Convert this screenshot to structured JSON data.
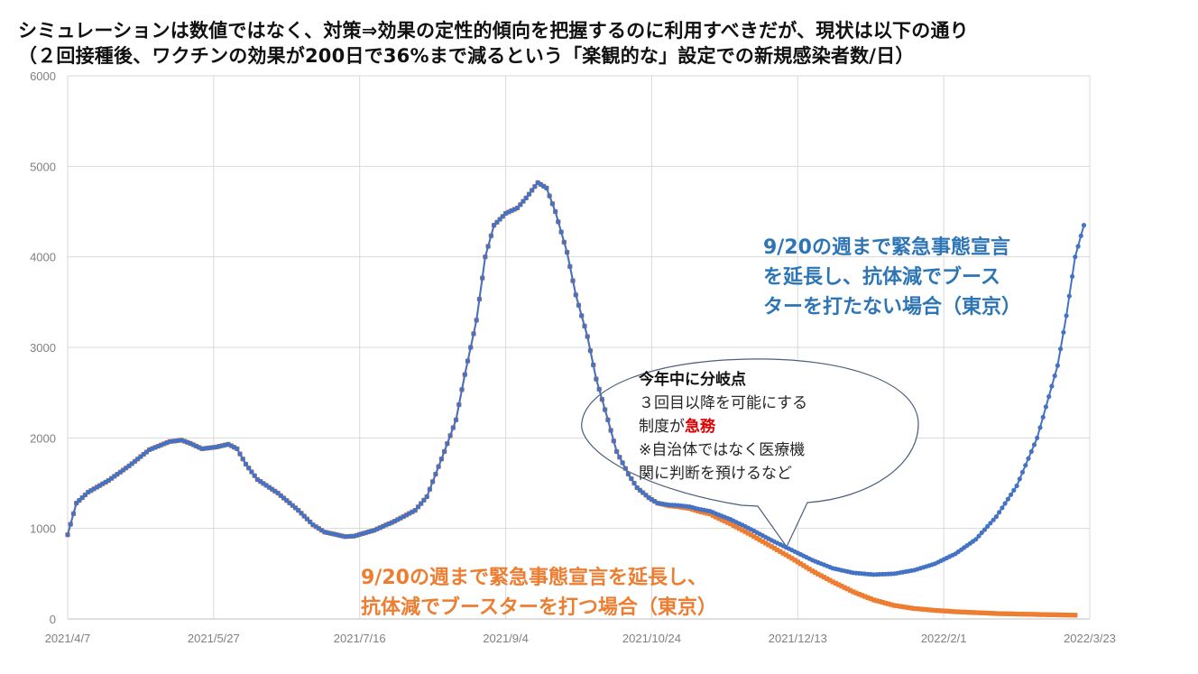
{
  "title_line1": "シミュレーションは数値ではなく、対策⇒効果の定性的傾向を把握するのに利用すべきだが、現状は以下の通り",
  "title_line2": "（２回接種後、ワクチンの効果が200日で36%まで減るという「楽観的な」設定での新規感染者数/日）",
  "colors": {
    "blue": "#4472c4",
    "orange": "#ed7d31",
    "annot_blue": "#2e75b6",
    "grid": "#d9d9d9",
    "tick": "#7f7f7f",
    "urgent": "#e00000"
  },
  "annotations": {
    "blue_line1": "9/20の週まで緊急事態宣言",
    "blue_line2": "を延長し、抗体減でブース",
    "blue_line3": "ターを打たない場合（東京）",
    "orange_line1": "9/20の週まで緊急事態宣言を延長し、",
    "orange_line2": "抗体減でブースターを打つ場合（東京）"
  },
  "callout": {
    "title": "今年中に分岐点",
    "line1": "３回目以降を可能にする",
    "line2_prefix": "制度が",
    "line2_urgent": "急務",
    "line3": "※自治体ではなく医療機",
    "line4": "関に判断を預けるなど"
  },
  "chart_data": {
    "type": "line",
    "title": "",
    "xlabel": "",
    "ylabel": "",
    "ylim": [
      0,
      6000
    ],
    "yticks": [
      0,
      1000,
      2000,
      3000,
      4000,
      5000,
      6000
    ],
    "x_tick_labels": [
      "2021/4/7",
      "2021/5/27",
      "2021/7/16",
      "2021/9/4",
      "2021/10/24",
      "2021/12/13",
      "2022/2/1",
      "2022/3/23"
    ],
    "x_range": [
      "2021/4/7",
      "2022/3/23"
    ],
    "grid": true,
    "series": [
      {
        "name": "",
        "color_key": "orange",
        "marker": "square",
        "points": [
          [
            "2021/4/7",
            930
          ],
          [
            "2021/4/10",
            1280
          ],
          [
            "2021/4/14",
            1400
          ],
          [
            "2021/4/21",
            1530
          ],
          [
            "2021/4/28",
            1690
          ],
          [
            "2021/5/5",
            1870
          ],
          [
            "2021/5/12",
            1960
          ],
          [
            "2021/5/16",
            1975
          ],
          [
            "2021/5/19",
            1940
          ],
          [
            "2021/5/23",
            1880
          ],
          [
            "2021/5/28",
            1900
          ],
          [
            "2021/6/1",
            1930
          ],
          [
            "2021/6/4",
            1880
          ],
          [
            "2021/6/7",
            1710
          ],
          [
            "2021/6/11",
            1540
          ],
          [
            "2021/6/18",
            1390
          ],
          [
            "2021/6/25",
            1200
          ],
          [
            "2021/6/30",
            1040
          ],
          [
            "2021/7/4",
            960
          ],
          [
            "2021/7/11",
            910
          ],
          [
            "2021/7/14",
            915
          ],
          [
            "2021/7/21",
            980
          ],
          [
            "2021/7/28",
            1080
          ],
          [
            "2021/8/4",
            1200
          ],
          [
            "2021/8/8",
            1350
          ],
          [
            "2021/8/11",
            1600
          ],
          [
            "2021/8/14",
            1850
          ],
          [
            "2021/8/18",
            2200
          ],
          [
            "2021/8/21",
            2700
          ],
          [
            "2021/8/25",
            3300
          ],
          [
            "2021/8/28",
            4000
          ],
          [
            "2021/8/31",
            4350
          ],
          [
            "2021/9/4",
            4480
          ],
          [
            "2021/9/8",
            4540
          ],
          [
            "2021/9/11",
            4650
          ],
          [
            "2021/9/15",
            4820
          ],
          [
            "2021/9/18",
            4760
          ],
          [
            "2021/9/21",
            4500
          ],
          [
            "2021/9/25",
            4050
          ],
          [
            "2021/9/28",
            3580
          ],
          [
            "2021/10/2",
            3120
          ],
          [
            "2021/10/5",
            2650
          ],
          [
            "2021/10/9",
            2200
          ],
          [
            "2021/10/12",
            1850
          ],
          [
            "2021/10/16",
            1600
          ],
          [
            "2021/10/19",
            1450
          ],
          [
            "2021/10/23",
            1340
          ],
          [
            "2021/10/26",
            1280
          ],
          [
            "2021/10/30",
            1250
          ],
          [
            "2021/11/2",
            1240
          ],
          [
            "2021/11/6",
            1220
          ],
          [
            "2021/11/9",
            1190
          ],
          [
            "2021/11/13",
            1160
          ],
          [
            "2021/11/16",
            1110
          ],
          [
            "2021/11/20",
            1050
          ],
          [
            "2021/11/27",
            930
          ],
          [
            "2021/12/4",
            800
          ],
          [
            "2021/12/11",
            670
          ],
          [
            "2021/12/18",
            530
          ],
          [
            "2021/12/25",
            410
          ],
          [
            "2022/1/1",
            300
          ],
          [
            "2022/1/8",
            210
          ],
          [
            "2022/1/15",
            150
          ],
          [
            "2022/1/22",
            115
          ],
          [
            "2022/1/29",
            95
          ],
          [
            "2022/2/5",
            80
          ],
          [
            "2022/2/12",
            70
          ],
          [
            "2022/2/19",
            60
          ],
          [
            "2022/2/26",
            55
          ],
          [
            "2022/3/5",
            50
          ],
          [
            "2022/3/12",
            45
          ],
          [
            "2022/3/18",
            42
          ]
        ]
      },
      {
        "name": "",
        "color_key": "blue",
        "marker": "circle",
        "points": [
          [
            "2021/4/7",
            930
          ],
          [
            "2021/4/10",
            1280
          ],
          [
            "2021/4/14",
            1400
          ],
          [
            "2021/4/21",
            1530
          ],
          [
            "2021/4/28",
            1690
          ],
          [
            "2021/5/5",
            1870
          ],
          [
            "2021/5/12",
            1960
          ],
          [
            "2021/5/16",
            1975
          ],
          [
            "2021/5/19",
            1940
          ],
          [
            "2021/5/23",
            1880
          ],
          [
            "2021/5/28",
            1900
          ],
          [
            "2021/6/1",
            1930
          ],
          [
            "2021/6/4",
            1880
          ],
          [
            "2021/6/7",
            1710
          ],
          [
            "2021/6/11",
            1540
          ],
          [
            "2021/6/18",
            1390
          ],
          [
            "2021/6/25",
            1200
          ],
          [
            "2021/6/30",
            1040
          ],
          [
            "2021/7/4",
            960
          ],
          [
            "2021/7/11",
            910
          ],
          [
            "2021/7/14",
            915
          ],
          [
            "2021/7/21",
            980
          ],
          [
            "2021/7/28",
            1080
          ],
          [
            "2021/8/4",
            1200
          ],
          [
            "2021/8/8",
            1350
          ],
          [
            "2021/8/11",
            1600
          ],
          [
            "2021/8/14",
            1850
          ],
          [
            "2021/8/18",
            2200
          ],
          [
            "2021/8/21",
            2700
          ],
          [
            "2021/8/25",
            3300
          ],
          [
            "2021/8/28",
            4000
          ],
          [
            "2021/8/31",
            4350
          ],
          [
            "2021/9/4",
            4480
          ],
          [
            "2021/9/8",
            4540
          ],
          [
            "2021/9/11",
            4650
          ],
          [
            "2021/9/15",
            4820
          ],
          [
            "2021/9/18",
            4760
          ],
          [
            "2021/9/21",
            4500
          ],
          [
            "2021/9/25",
            4050
          ],
          [
            "2021/9/28",
            3580
          ],
          [
            "2021/10/2",
            3120
          ],
          [
            "2021/10/5",
            2650
          ],
          [
            "2021/10/9",
            2200
          ],
          [
            "2021/10/12",
            1850
          ],
          [
            "2021/10/16",
            1600
          ],
          [
            "2021/10/19",
            1450
          ],
          [
            "2021/10/23",
            1340
          ],
          [
            "2021/10/26",
            1280
          ],
          [
            "2021/10/30",
            1260
          ],
          [
            "2021/11/2",
            1255
          ],
          [
            "2021/11/6",
            1240
          ],
          [
            "2021/11/9",
            1215
          ],
          [
            "2021/11/13",
            1190
          ],
          [
            "2021/11/16",
            1150
          ],
          [
            "2021/11/20",
            1100
          ],
          [
            "2021/11/27",
            990
          ],
          [
            "2021/12/4",
            870
          ],
          [
            "2021/12/11",
            760
          ],
          [
            "2021/12/18",
            650
          ],
          [
            "2021/12/25",
            560
          ],
          [
            "2022/1/1",
            510
          ],
          [
            "2022/1/8",
            490
          ],
          [
            "2022/1/15",
            500
          ],
          [
            "2022/1/22",
            540
          ],
          [
            "2022/1/29",
            610
          ],
          [
            "2022/2/5",
            720
          ],
          [
            "2022/2/12",
            880
          ],
          [
            "2022/2/19",
            1130
          ],
          [
            "2022/2/26",
            1470
          ],
          [
            "2022/3/5",
            2000
          ],
          [
            "2022/3/12",
            2800
          ],
          [
            "2022/3/15",
            3350
          ],
          [
            "2022/3/18",
            4000
          ],
          [
            "2022/3/21",
            4350
          ]
        ]
      }
    ]
  }
}
